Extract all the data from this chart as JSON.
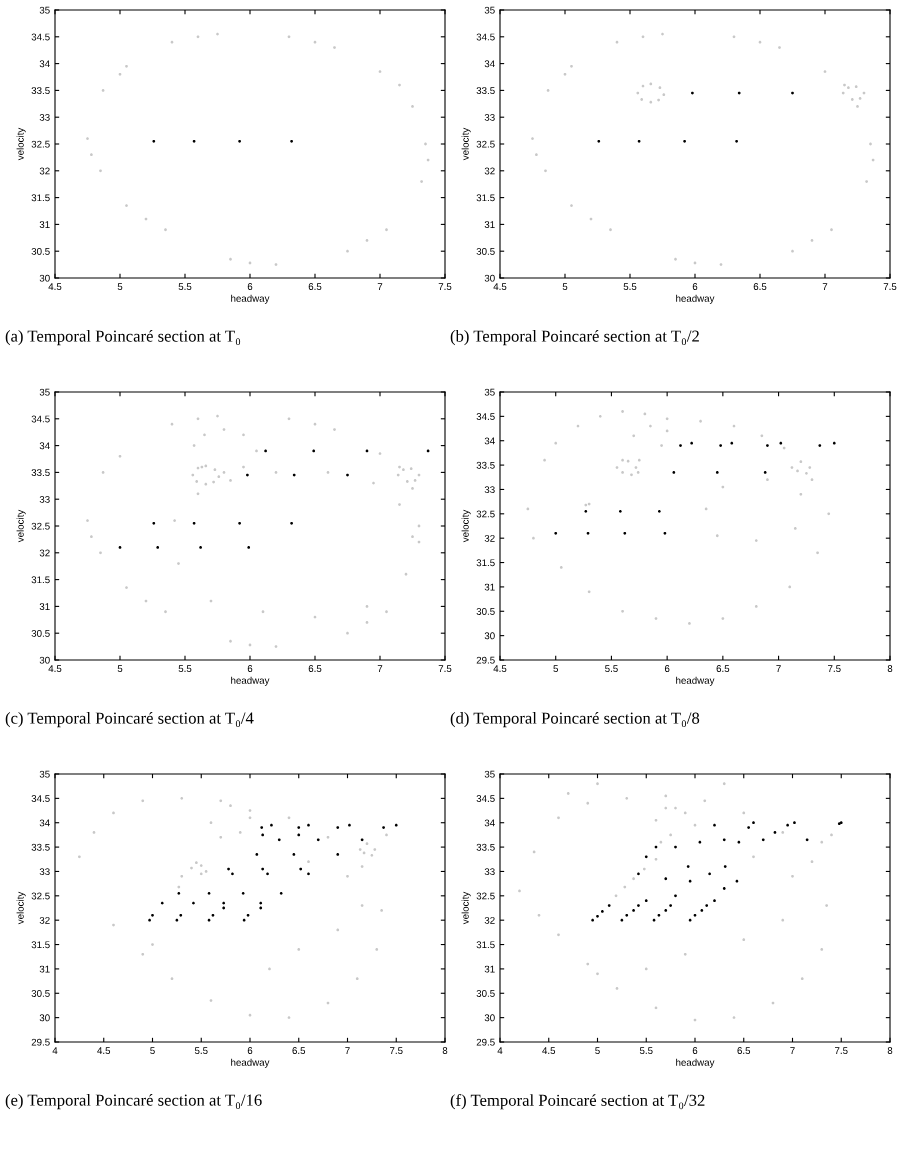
{
  "chart_data": [
    {
      "type": "scatter",
      "xlabel": "headway",
      "ylabel": "velocity",
      "xlim": [
        4.5,
        7.5
      ],
      "ylim": [
        30,
        35
      ],
      "xticks": [
        4.5,
        5,
        5.5,
        6,
        6.5,
        7,
        7.5
      ],
      "yticks": [
        30,
        30.5,
        31,
        31.5,
        32,
        32.5,
        33,
        33.5,
        34,
        34.5,
        35
      ],
      "marker": "circle",
      "annotations": [
        "(a) Temporal Poincaré section at T₀"
      ],
      "series": [
        {
          "color": "#000000",
          "x": [
            5.26,
            5.57,
            5.92,
            6.32
          ],
          "values": [
            32.55,
            32.55,
            32.55,
            32.55
          ]
        },
        {
          "color": "#c8c8c8",
          "x": [
            4.75,
            4.78,
            4.85,
            4.87,
            5.0,
            5.05,
            5.05,
            5.2,
            5.35,
            5.4,
            5.6,
            5.75,
            5.85,
            6.0,
            6.2,
            6.3,
            6.5,
            6.65,
            6.75,
            6.9,
            7.05,
            7.0,
            7.15,
            7.25,
            7.35,
            7.37,
            7.32
          ],
          "values": [
            32.6,
            32.3,
            32.0,
            33.5,
            33.8,
            33.95,
            31.35,
            31.1,
            30.9,
            34.4,
            34.5,
            34.55,
            30.35,
            30.28,
            30.25,
            34.5,
            34.4,
            34.3,
            30.5,
            30.7,
            30.9,
            33.85,
            33.6,
            33.2,
            32.5,
            32.2,
            31.8
          ]
        }
      ]
    },
    {
      "type": "scatter",
      "xlabel": "headway",
      "ylabel": "velocity",
      "xlim": [
        4.5,
        7.5
      ],
      "ylim": [
        30,
        35
      ],
      "xticks": [
        4.5,
        5,
        5.5,
        6,
        6.5,
        7,
        7.5
      ],
      "yticks": [
        30,
        30.5,
        31,
        31.5,
        32,
        32.5,
        33,
        33.5,
        34,
        34.5,
        35
      ],
      "marker": "circle",
      "annotations": [
        "(b) Temporal Poincaré section at T₀/2"
      ],
      "series": [
        {
          "color": "#000000",
          "x": [
            5.26,
            5.57,
            5.92,
            6.32,
            5.98,
            6.34,
            6.75
          ],
          "values": [
            32.55,
            32.55,
            32.55,
            32.55,
            33.45,
            33.45,
            33.45
          ]
        },
        {
          "color": "#c8c8c8",
          "x": [
            4.75,
            4.78,
            4.85,
            4.87,
            5.0,
            5.05,
            5.05,
            5.2,
            5.35,
            5.4,
            5.6,
            5.75,
            5.85,
            6.0,
            6.2,
            6.3,
            6.5,
            6.65,
            6.75,
            6.9,
            7.05,
            7.0,
            7.15,
            7.25,
            7.35,
            7.37,
            7.32,
            5.56,
            5.6,
            5.66,
            5.73,
            5.76,
            5.72,
            5.66,
            5.59,
            7.14,
            7.18,
            7.24,
            7.3,
            7.27,
            7.21
          ],
          "values": [
            32.6,
            32.3,
            32.0,
            33.5,
            33.8,
            33.95,
            31.35,
            31.1,
            30.9,
            34.4,
            34.5,
            34.55,
            30.35,
            30.28,
            30.25,
            34.5,
            34.4,
            34.3,
            30.5,
            30.7,
            30.9,
            33.85,
            33.6,
            33.2,
            32.5,
            32.2,
            31.8,
            33.45,
            33.58,
            33.62,
            33.55,
            33.42,
            33.32,
            33.28,
            33.33,
            33.45,
            33.55,
            33.57,
            33.45,
            33.35,
            33.33
          ]
        }
      ]
    },
    {
      "type": "scatter",
      "xlabel": "headway",
      "ylabel": "velocity",
      "xlim": [
        4.5,
        7.5
      ],
      "ylim": [
        30,
        35
      ],
      "xticks": [
        4.5,
        5,
        5.5,
        6,
        6.5,
        7,
        7.5
      ],
      "yticks": [
        30,
        30.5,
        31,
        31.5,
        32,
        32.5,
        33,
        33.5,
        34,
        34.5,
        35
      ],
      "marker": "circle",
      "annotations": [
        "(c) Temporal Poincaré section at T₀/4"
      ],
      "series": [
        {
          "color": "#000000",
          "x": [
            6.12,
            6.49,
            6.9,
            7.37,
            5.98,
            6.34,
            6.75,
            5.26,
            5.57,
            5.92,
            6.32,
            5.0,
            5.29,
            5.62,
            5.99
          ],
          "values": [
            33.9,
            33.9,
            33.9,
            33.9,
            33.45,
            33.45,
            33.45,
            32.55,
            32.55,
            32.55,
            32.55,
            32.1,
            32.1,
            32.1,
            32.1
          ]
        },
        {
          "color": "#c8c8c8",
          "x": [
            4.75,
            4.78,
            4.85,
            4.87,
            5.0,
            5.05,
            5.2,
            5.35,
            5.4,
            5.6,
            5.75,
            5.85,
            6.0,
            6.2,
            6.3,
            6.5,
            6.65,
            6.75,
            6.9,
            7.05,
            7.0,
            7.15,
            7.25,
            7.3,
            7.3,
            5.56,
            5.6,
            5.66,
            5.73,
            5.76,
            5.72,
            5.66,
            5.59,
            7.14,
            7.18,
            7.24,
            7.3,
            7.27,
            7.21,
            5.57,
            5.65,
            5.8,
            5.95,
            6.05,
            5.95,
            5.8,
            5.63,
            5.42,
            5.6,
            5.85,
            6.2,
            6.6,
            6.95,
            7.15,
            7.25,
            7.2,
            6.9,
            6.5,
            6.1,
            5.7,
            5.45
          ],
          "values": [
            32.6,
            32.3,
            32.0,
            33.5,
            33.8,
            31.35,
            31.1,
            30.9,
            34.4,
            34.5,
            34.55,
            30.35,
            30.28,
            30.25,
            34.5,
            34.4,
            34.3,
            30.5,
            30.7,
            30.9,
            33.85,
            33.6,
            33.2,
            32.5,
            32.2,
            33.45,
            33.58,
            33.62,
            33.55,
            33.42,
            33.32,
            33.28,
            33.33,
            33.45,
            33.55,
            33.57,
            33.45,
            33.35,
            33.33,
            34.0,
            34.2,
            34.3,
            34.2,
            33.9,
            33.6,
            33.5,
            33.6,
            32.6,
            33.1,
            33.35,
            33.5,
            33.5,
            33.3,
            32.9,
            32.3,
            31.6,
            31.0,
            30.8,
            30.9,
            31.1,
            31.8
          ]
        }
      ]
    },
    {
      "type": "scatter",
      "xlabel": "headway",
      "ylabel": "velocity",
      "xlim": [
        4.5,
        8
      ],
      "ylim": [
        29.5,
        35
      ],
      "xticks": [
        4.5,
        5,
        5.5,
        6,
        6.5,
        7,
        7.5,
        8
      ],
      "yticks": [
        29.5,
        30,
        30.5,
        31,
        31.5,
        32,
        32.5,
        33,
        33.5,
        34,
        34.5,
        35
      ],
      "marker": "circle",
      "annotations": [
        "(d) Temporal Poincaré section at T₀/8"
      ],
      "series": [
        {
          "color": "#000000",
          "x": [
            6.12,
            6.22,
            6.48,
            6.58,
            6.9,
            7.02,
            7.37,
            7.5,
            6.06,
            6.45,
            6.88,
            5.27,
            5.58,
            5.93,
            5.0,
            5.29,
            5.62,
            5.98
          ],
          "values": [
            33.9,
            33.95,
            33.9,
            33.95,
            33.9,
            33.95,
            33.9,
            33.95,
            33.35,
            33.35,
            33.35,
            32.55,
            32.55,
            32.55,
            32.1,
            32.1,
            32.1,
            32.1
          ]
        },
        {
          "color": "#c8c8c8",
          "x": [
            4.75,
            4.8,
            4.9,
            5.0,
            5.2,
            5.4,
            5.6,
            5.8,
            6.0,
            6.3,
            6.6,
            6.85,
            7.05,
            7.3,
            7.45,
            7.35,
            7.1,
            6.8,
            6.5,
            6.2,
            5.9,
            5.6,
            5.3,
            5.05,
            5.55,
            5.6,
            5.65,
            5.72,
            5.74,
            5.68,
            5.6,
            7.12,
            7.2,
            7.28,
            7.25,
            7.17,
            5.27,
            5.3,
            5.7,
            5.85,
            6.0,
            5.95,
            5.75,
            6.35,
            6.5,
            6.9,
            7.2,
            7.15,
            6.8,
            6.45
          ],
          "values": [
            32.6,
            32.0,
            33.6,
            33.95,
            34.3,
            34.5,
            34.6,
            34.55,
            34.45,
            34.4,
            34.3,
            34.1,
            33.85,
            33.2,
            32.5,
            31.7,
            31.0,
            30.6,
            30.35,
            30.25,
            30.35,
            30.5,
            30.9,
            31.4,
            33.45,
            33.6,
            33.58,
            33.45,
            33.35,
            33.3,
            33.35,
            33.45,
            33.57,
            33.45,
            33.33,
            33.38,
            32.68,
            32.7,
            34.1,
            34.3,
            34.2,
            33.9,
            33.6,
            32.6,
            33.05,
            33.2,
            32.9,
            32.2,
            31.95,
            32.05
          ]
        }
      ]
    },
    {
      "type": "scatter",
      "xlabel": "headway",
      "ylabel": "velocity",
      "xlim": [
        4,
        8
      ],
      "ylim": [
        29.5,
        35
      ],
      "xticks": [
        4,
        4.5,
        5,
        5.5,
        6,
        6.5,
        7,
        7.5,
        8
      ],
      "yticks": [
        29.5,
        30,
        30.5,
        31,
        31.5,
        32,
        32.5,
        33,
        33.5,
        34,
        34.5,
        35
      ],
      "marker": "circle",
      "annotations": [
        "(e) Temporal Poincaré section at T₀/16"
      ],
      "series": [
        {
          "color": "#000000",
          "x": [
            6.22,
            6.6,
            7.02,
            7.5,
            6.12,
            6.5,
            6.9,
            7.37,
            6.13,
            6.5,
            6.3,
            6.7,
            7.15,
            6.07,
            6.45,
            6.9,
            5.78,
            6.13,
            6.52,
            5.82,
            6.18,
            6.6,
            5.27,
            5.58,
            5.93,
            6.32,
            5.1,
            5.42,
            5.73,
            6.11,
            5.73,
            6.11,
            5.0,
            5.29,
            5.62,
            5.98,
            4.97,
            5.25,
            5.58,
            5.94
          ],
          "values": [
            33.95,
            33.95,
            33.95,
            33.95,
            33.9,
            33.9,
            33.9,
            33.9,
            33.75,
            33.75,
            33.65,
            33.65,
            33.65,
            33.35,
            33.35,
            33.35,
            33.05,
            33.05,
            33.05,
            32.95,
            32.95,
            32.95,
            32.55,
            32.55,
            32.55,
            32.55,
            32.35,
            32.35,
            32.35,
            32.35,
            32.25,
            32.25,
            32.1,
            32.1,
            32.1,
            32.1,
            32.0,
            32.0,
            32.0,
            32.0
          ]
        },
        {
          "color": "#c8c8c8",
          "x": [
            4.25,
            4.4,
            4.6,
            4.9,
            5.3,
            5.7,
            6.0,
            6.4,
            6.8,
            7.15,
            7.35,
            7.3,
            7.1,
            6.8,
            6.4,
            6.0,
            5.6,
            5.2,
            4.9,
            4.6,
            5.4,
            5.45,
            5.5,
            5.55,
            5.5,
            7.13,
            7.2,
            7.28,
            7.25,
            7.17,
            5.27,
            7.4,
            5.6,
            5.8,
            6.0,
            5.9,
            5.7,
            6.6,
            7.0,
            7.15,
            6.9,
            6.5,
            5.0,
            5.3,
            6.2
          ],
          "values": [
            33.3,
            33.8,
            34.2,
            34.45,
            34.5,
            34.45,
            34.25,
            34.1,
            33.7,
            33.1,
            32.2,
            31.4,
            30.8,
            30.3,
            30.0,
            30.05,
            30.35,
            30.8,
            31.3,
            31.9,
            33.07,
            33.18,
            33.12,
            33.0,
            32.95,
            33.45,
            33.57,
            33.45,
            33.33,
            33.38,
            32.68,
            33.75,
            34.0,
            34.35,
            34.1,
            33.8,
            33.7,
            33.2,
            32.9,
            32.3,
            31.8,
            31.4,
            31.5,
            32.9,
            31.0
          ]
        }
      ]
    },
    {
      "type": "scatter",
      "xlabel": "headway",
      "ylabel": "velocity",
      "xlim": [
        4,
        8
      ],
      "ylim": [
        29.5,
        35
      ],
      "xticks": [
        4,
        4.5,
        5,
        5.5,
        6,
        6.5,
        7,
        7.5,
        8
      ],
      "yticks": [
        29.5,
        30,
        30.5,
        31,
        31.5,
        32,
        32.5,
        33,
        33.5,
        34,
        34.5,
        35
      ],
      "marker": "circle",
      "annotations": [
        "(f) Temporal Poincaré section at T₀/32"
      ],
      "series": [
        {
          "color": "#000000",
          "x": [
            4.95,
            5.0,
            5.05,
            5.12,
            5.25,
            5.3,
            5.37,
            5.42,
            5.58,
            5.63,
            5.7,
            5.75,
            5.95,
            6.0,
            6.07,
            6.12,
            5.5,
            5.6,
            5.8,
            5.93,
            6.05,
            6.2,
            6.3,
            6.31,
            6.45,
            6.55,
            6.6,
            6.7,
            6.82,
            6.95,
            7.02,
            7.15,
            7.48,
            7.5,
            6.43,
            6.15,
            5.95,
            5.7,
            5.42,
            5.5,
            5.8,
            6.2,
            6.3
          ],
          "values": [
            32.0,
            32.08,
            32.18,
            32.3,
            32.0,
            32.1,
            32.2,
            32.3,
            32.0,
            32.1,
            32.2,
            32.3,
            32.0,
            32.1,
            32.2,
            32.3,
            33.3,
            33.5,
            33.5,
            33.1,
            33.6,
            33.95,
            33.65,
            33.1,
            33.6,
            33.9,
            34.0,
            33.65,
            33.8,
            33.95,
            34.0,
            33.65,
            33.98,
            34.0,
            32.8,
            32.95,
            32.8,
            32.85,
            32.95,
            32.4,
            32.5,
            32.4,
            32.65
          ]
        },
        {
          "color": "#c8c8c8",
          "x": [
            5.19,
            5.28,
            5.37,
            5.48,
            5.6,
            7.3,
            7.4,
            4.2,
            4.35,
            4.6,
            4.9,
            5.3,
            5.7,
            6.1,
            6.5,
            6.9,
            7.2,
            7.35,
            7.3,
            7.1,
            6.8,
            6.4,
            6.0,
            5.6,
            5.2,
            4.9,
            4.6,
            4.4,
            5.6,
            5.7,
            5.8,
            5.9,
            6.0,
            5.75,
            5.65,
            6.6,
            7.0,
            6.9,
            6.5,
            5.9,
            4.7,
            5.0,
            6.3,
            5.5,
            5.0
          ],
          "values": [
            32.5,
            32.68,
            32.85,
            33.05,
            33.25,
            33.6,
            33.75,
            32.6,
            33.4,
            34.1,
            34.4,
            34.5,
            34.55,
            34.45,
            34.2,
            33.8,
            33.2,
            32.3,
            31.4,
            30.8,
            30.3,
            30.0,
            29.95,
            30.2,
            30.6,
            31.1,
            31.7,
            32.1,
            34.05,
            34.3,
            34.3,
            34.2,
            33.95,
            33.75,
            33.6,
            33.3,
            32.9,
            32.0,
            31.6,
            31.3,
            34.6,
            34.8,
            34.8,
            31.0,
            30.9
          ]
        }
      ]
    }
  ]
}
